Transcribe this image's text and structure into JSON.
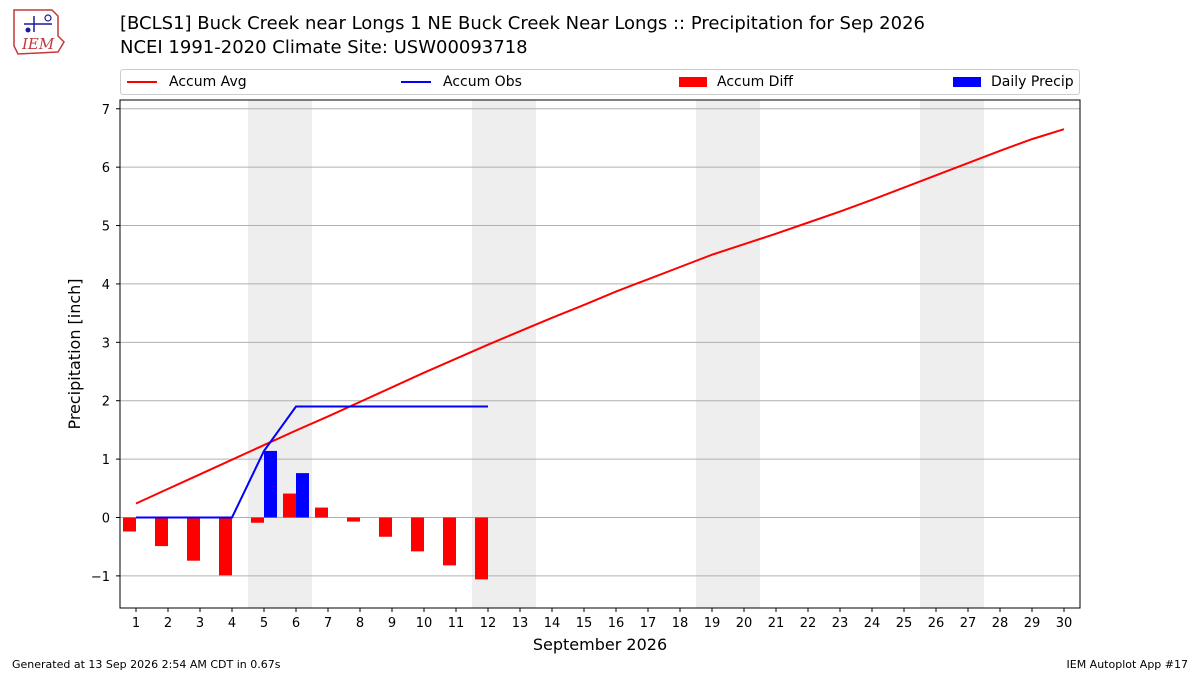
{
  "title_line1": "[BCLS1] Buck Creek near Longs 1 NE Buck Creek Near Longs :: Precipitation for Sep 2026",
  "title_line2": "NCEI 1991-2020 Climate Site: USW00093718",
  "logo_text": "IEM",
  "footer_left": "Generated at 13 Sep 2026 2:54 AM CDT in 0.67s",
  "footer_right": "IEM Autoplot App #17",
  "colors": {
    "avg": "#ff0000",
    "obs": "#0000ff",
    "diff": "#ff0000",
    "daily": "#0000ff",
    "weekend": "#eeeeee",
    "grid": "#b0b0b0"
  },
  "chart_data": {
    "type": "bar",
    "title": "[BCLS1] Buck Creek near Longs 1 NE Buck Creek Near Longs :: Precipitation for Sep 2026",
    "subtitle": "NCEI 1991-2020 Climate Site: USW00093718",
    "xlabel": "September 2026",
    "ylabel": "Precipitation [inch]",
    "xlim": [
      0.5,
      30.5
    ],
    "ylim": [
      -1.55,
      7.15
    ],
    "yticks": [
      -1,
      0,
      1,
      2,
      3,
      4,
      5,
      6,
      7
    ],
    "ytick_labels": [
      "−1",
      "0",
      "1",
      "2",
      "3",
      "4",
      "5",
      "6",
      "7"
    ],
    "x": [
      1,
      2,
      3,
      4,
      5,
      6,
      7,
      8,
      9,
      10,
      11,
      12,
      13,
      14,
      15,
      16,
      17,
      18,
      19,
      20,
      21,
      22,
      23,
      24,
      25,
      26,
      27,
      28,
      29,
      30
    ],
    "xtick_labels": [
      "1",
      "2",
      "3",
      "4",
      "5",
      "6",
      "7",
      "8",
      "9",
      "10",
      "11",
      "12",
      "13",
      "14",
      "15",
      "16",
      "17",
      "18",
      "19",
      "20",
      "21",
      "22",
      "23",
      "24",
      "25",
      "26",
      "27",
      "28",
      "29",
      "30"
    ],
    "weekend_spans": [
      [
        4.5,
        6.5
      ],
      [
        11.5,
        13.5
      ],
      [
        18.5,
        20.5
      ],
      [
        25.5,
        27.5
      ]
    ],
    "grid": "horizontal",
    "legend_position": "top",
    "series": [
      {
        "name": "Accum Avg",
        "kind": "line",
        "x": [
          1,
          2,
          3,
          4,
          5,
          6,
          7,
          8,
          9,
          10,
          11,
          12,
          13,
          14,
          15,
          16,
          17,
          18,
          19,
          20,
          21,
          22,
          23,
          24,
          25,
          26,
          27,
          28,
          29,
          30
        ],
        "values": [
          0.24,
          0.49,
          0.74,
          0.99,
          1.24,
          1.49,
          1.73,
          1.98,
          2.23,
          2.48,
          2.72,
          2.96,
          3.19,
          3.42,
          3.64,
          3.87,
          4.08,
          4.29,
          4.5,
          4.68,
          4.86,
          5.05,
          5.24,
          5.44,
          5.65,
          5.86,
          6.07,
          6.28,
          6.48,
          6.65
        ]
      },
      {
        "name": "Accum Obs",
        "kind": "line",
        "x": [
          1,
          2,
          3,
          4,
          5,
          6,
          7,
          8,
          9,
          10,
          11,
          12
        ],
        "values": [
          0.0,
          0.0,
          0.0,
          0.0,
          1.14,
          1.9,
          1.9,
          1.9,
          1.9,
          1.9,
          1.9,
          1.9
        ]
      },
      {
        "name": "Accum Diff",
        "kind": "bar",
        "x": [
          1,
          2,
          3,
          4,
          5,
          6,
          7,
          8,
          9,
          10,
          11,
          12
        ],
        "values": [
          -0.24,
          -0.49,
          -0.74,
          -0.99,
          -0.09,
          0.41,
          0.17,
          -0.07,
          -0.33,
          -0.58,
          -0.82,
          -1.06
        ]
      },
      {
        "name": "Daily Precip",
        "kind": "bar",
        "x": [
          1,
          2,
          3,
          4,
          5,
          6,
          7,
          8,
          9,
          10,
          11,
          12
        ],
        "values": [
          0,
          0,
          0,
          0,
          1.14,
          0.76,
          0,
          0,
          0,
          0,
          0,
          0
        ]
      }
    ]
  }
}
